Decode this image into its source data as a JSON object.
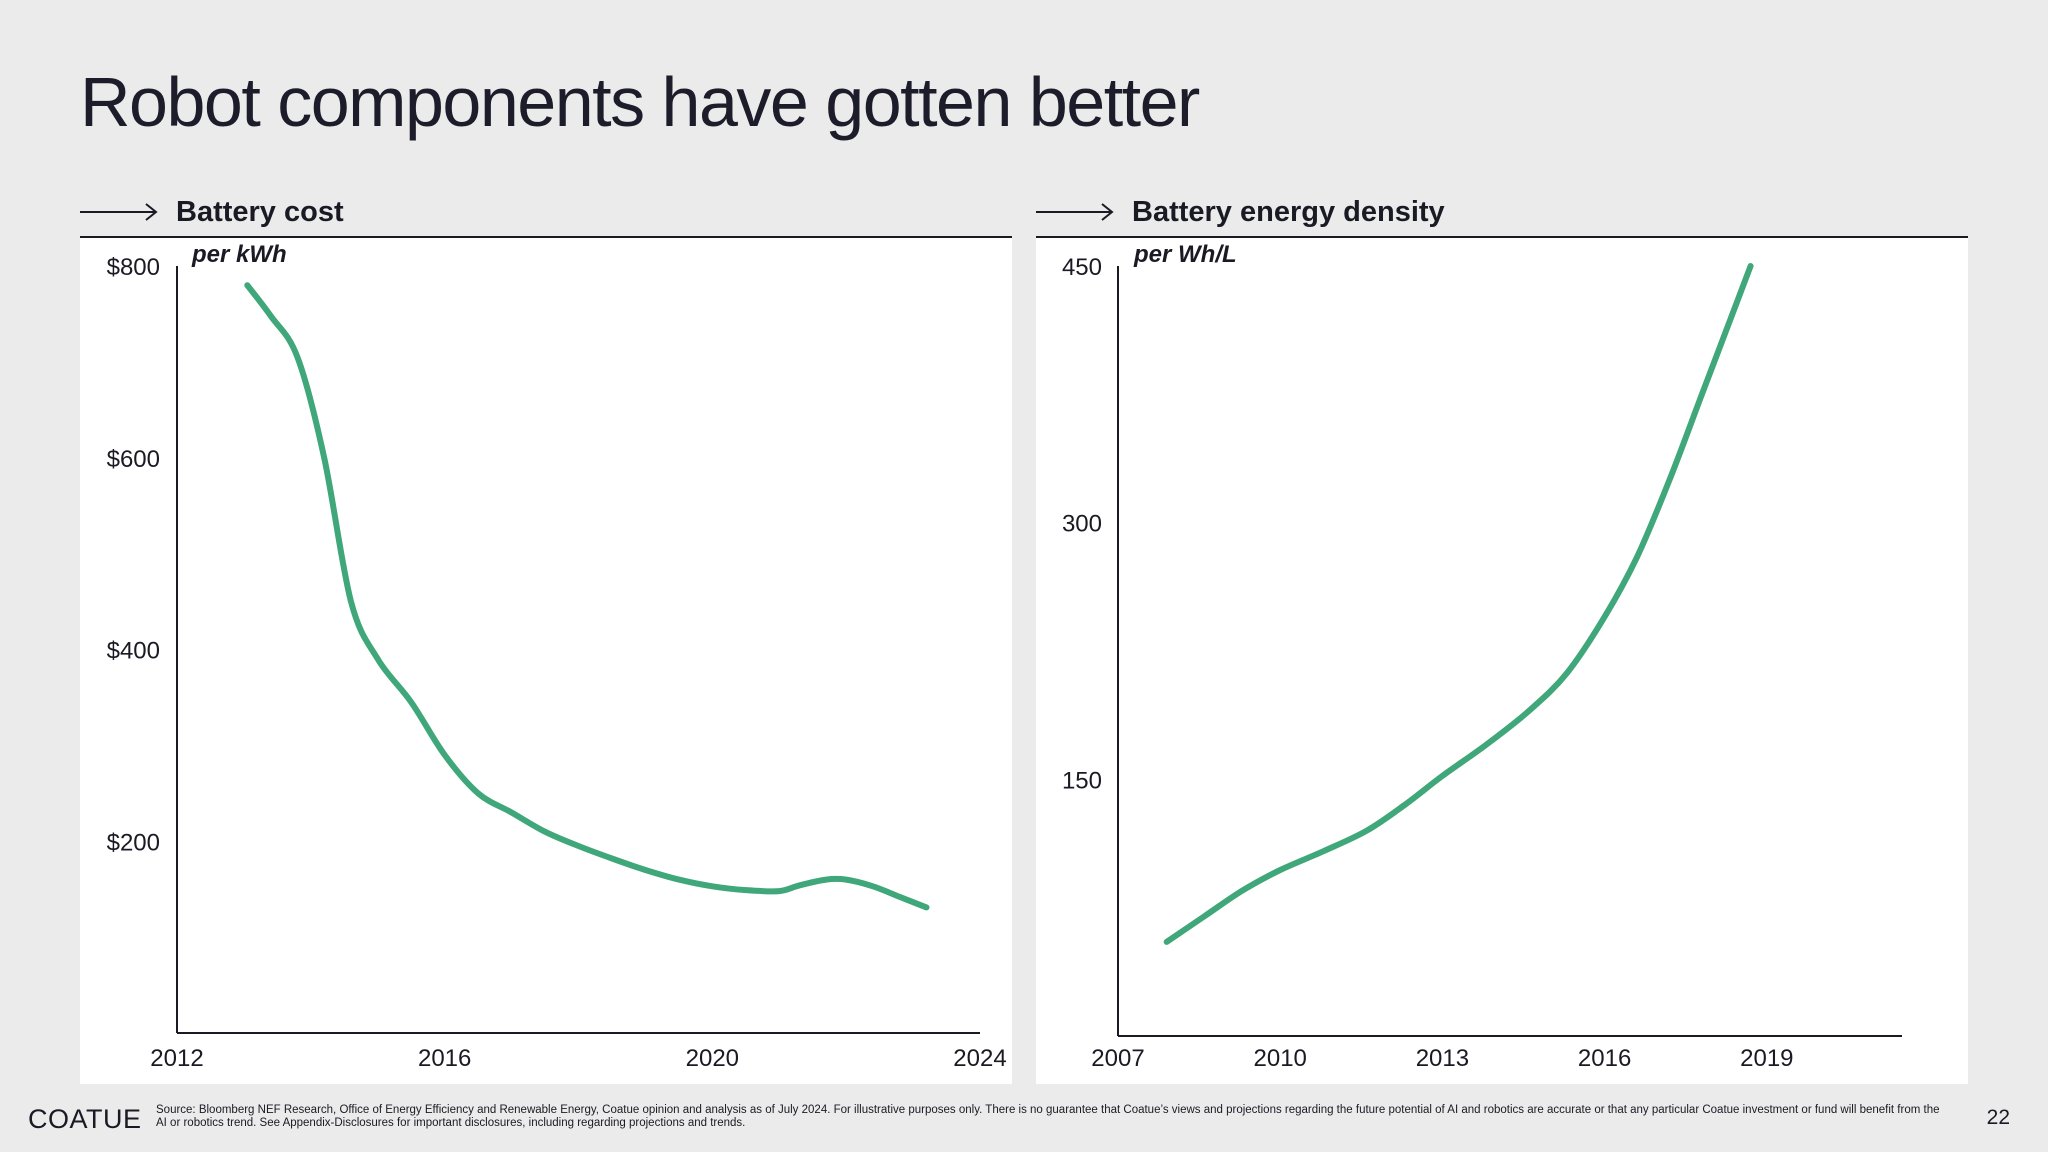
{
  "title": "Robot components have gotten better",
  "footer": {
    "logo": "COATUE",
    "source": "Source: Bloomberg NEF Research, Office of Energy Efficiency and Renewable Energy, Coatue opinion and analysis as of July 2024. For illustrative purposes only. There is no guarantee that Coatue’s views and projections regarding the future potential of AI and robotics are accurate or that any particular Coatue investment or fund will benefit from the AI or robotics trend. See Appendix-Disclosures for important disclosures, including regarding projections and trends.",
    "page": "22"
  },
  "colors": {
    "line": "#3fa77a",
    "background": "#ebebeb",
    "panel": "#ffffff",
    "text": "#1a1a24"
  },
  "chart_data": [
    {
      "type": "line",
      "title": "Battery cost",
      "unit_label": "per kWh",
      "xlim": [
        2012,
        2024
      ],
      "ylim": [
        0,
        800
      ],
      "x_ticks": [
        2012,
        2016,
        2020,
        2024
      ],
      "y_ticks": [
        200,
        400,
        600,
        800
      ],
      "y_tick_labels": [
        "$200",
        "$400",
        "$600",
        "$800"
      ],
      "grid": false,
      "series": [
        {
          "x": [
            2013.05,
            2013.4,
            2013.8,
            2014.2,
            2014.6,
            2015.0,
            2015.5,
            2016.0,
            2016.5,
            2017.0,
            2017.5,
            2018.0,
            2018.5,
            2019.0,
            2019.5,
            2020.0,
            2020.5,
            2021.0,
            2021.3,
            2021.7,
            2022.0,
            2022.4,
            2022.8,
            2023.2
          ],
          "y": [
            780,
            748,
            705,
            600,
            450,
            390,
            345,
            290,
            250,
            230,
            210,
            195,
            182,
            170,
            160,
            153,
            149,
            148,
            154,
            160,
            160,
            153,
            142,
            131
          ]
        }
      ]
    },
    {
      "type": "line",
      "title": "Battery energy density",
      "unit_label": "per Wh/L",
      "xlim": [
        2007,
        2021.5
      ],
      "ylim": [
        0,
        450
      ],
      "x_ticks": [
        2007,
        2010,
        2013,
        2016,
        2019
      ],
      "y_ticks": [
        150,
        300,
        450
      ],
      "grid": false,
      "series": [
        {
          "x": [
            2007.9,
            2008.6,
            2009.3,
            2010.0,
            2010.8,
            2011.6,
            2012.3,
            2013.0,
            2013.8,
            2014.6,
            2015.3,
            2016.0,
            2016.6,
            2017.2,
            2017.8,
            2018.4,
            2018.7
          ],
          "y": [
            55,
            70,
            85,
            97,
            108,
            120,
            135,
            152,
            170,
            190,
            212,
            245,
            280,
            325,
            375,
            425,
            450
          ]
        }
      ]
    }
  ]
}
